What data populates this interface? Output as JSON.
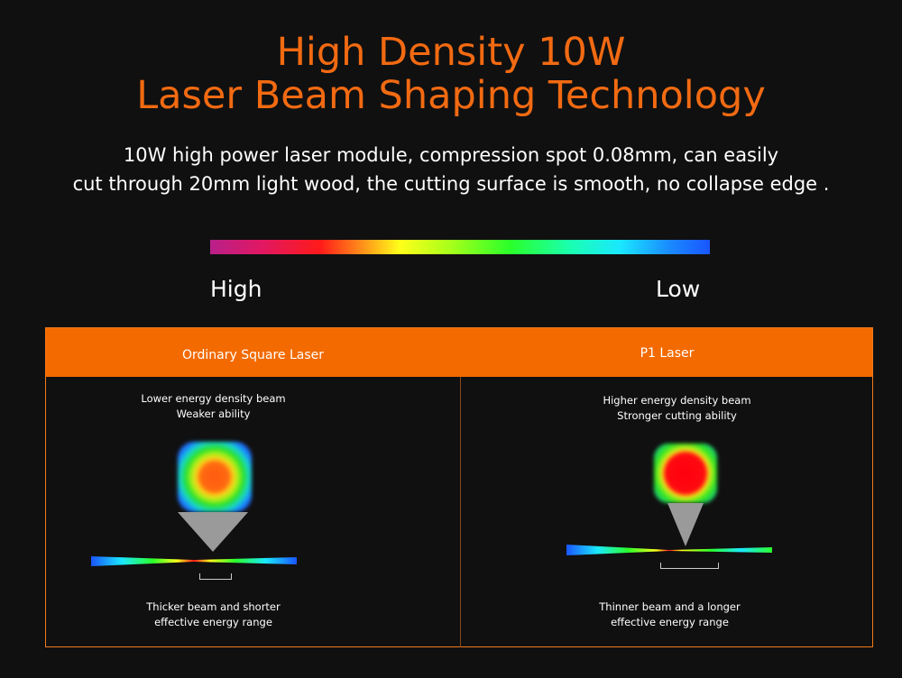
{
  "header": {
    "title_line1": "High Density 10W",
    "title_line2": "Laser Beam Shaping Technology",
    "subtitle_line1": "10W high power laser module, compression spot 0.08mm, can easily",
    "subtitle_line2": "cut through 20mm light wood, the cutting surface is smooth, no collapse edge ."
  },
  "scale": {
    "high": "High",
    "low": "Low"
  },
  "comparison": {
    "left": {
      "title": "Ordinary Square Laser",
      "desc_line1": "Lower energy density beam",
      "desc_line2": "Weaker ability",
      "bottom_line1": "Thicker beam and shorter",
      "bottom_line2": "effective energy range"
    },
    "right": {
      "title": "P1 Laser",
      "desc_line1": "Higher energy density beam",
      "desc_line2": "Stronger cutting ability",
      "bottom_line1": "Thinner beam and a longer",
      "bottom_line2": "effective energy range"
    }
  },
  "colors": {
    "accent": "#f26a00",
    "background": "#101010"
  }
}
